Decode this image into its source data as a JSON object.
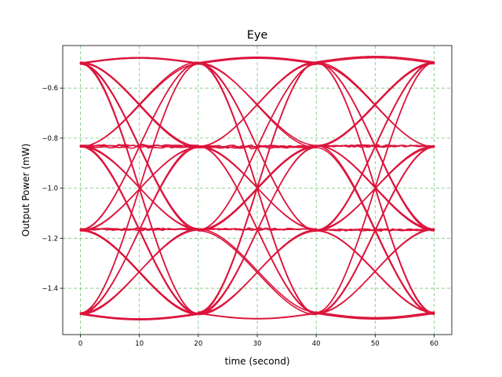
{
  "chart_data": {
    "type": "line",
    "title": "Eye",
    "xlabel": "time (second)",
    "ylabel": "Output Power (mW)",
    "xlim": [
      -3,
      63
    ],
    "ylim": [
      -1.585,
      -0.43
    ],
    "xticks": [
      0,
      10,
      20,
      30,
      40,
      50,
      60
    ],
    "yticks": [
      -1.4,
      -1.2,
      -1.0,
      -0.8,
      -0.6
    ],
    "ytick_labels": [
      "−1.4",
      "−1.2",
      "−1.0",
      "−0.8",
      "−0.6"
    ],
    "grid": true,
    "grid_color": "#4caf50",
    "line_color": "#dc143c",
    "levels": [
      -1.5,
      -1.1667,
      -0.8333,
      -0.5
    ],
    "symbol_period": 20,
    "trace_span": [
      0,
      60
    ]
  }
}
